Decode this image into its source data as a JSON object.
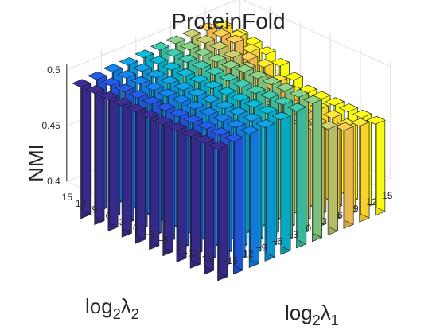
{
  "chart_data": {
    "type": "bar3",
    "title": "ProteinFold",
    "xlabel": "log2λ1",
    "ylabel": "log2λ2",
    "zlabel": "NMI",
    "x_ticks": [
      "-15",
      "-12",
      "-9",
      "-6",
      "-3",
      "0",
      "3",
      "6",
      "9",
      "12",
      "15"
    ],
    "y_ticks": [
      "-15",
      "-12",
      "-9",
      "-6",
      "-3",
      "0",
      "3",
      "6",
      "9",
      "12",
      "15"
    ],
    "z_ticks": [
      "0.4",
      "0.45",
      "0.5"
    ],
    "zlim": [
      0.4,
      0.5
    ],
    "grid": true,
    "colormap": "parula (color varies with log2λ1)",
    "values": [
      [
        0.488,
        0.488,
        0.488,
        0.488,
        0.488,
        0.488,
        0.488,
        0.488,
        0.488,
        0.488,
        0.488
      ],
      [
        0.489,
        0.489,
        0.489,
        0.489,
        0.489,
        0.489,
        0.489,
        0.489,
        0.489,
        0.489,
        0.489
      ],
      [
        0.49,
        0.49,
        0.49,
        0.49,
        0.49,
        0.49,
        0.49,
        0.49,
        0.49,
        0.49,
        0.49
      ],
      [
        0.49,
        0.49,
        0.49,
        0.49,
        0.49,
        0.49,
        0.49,
        0.49,
        0.49,
        0.49,
        0.49
      ],
      [
        0.491,
        0.491,
        0.491,
        0.491,
        0.491,
        0.491,
        0.491,
        0.491,
        0.491,
        0.491,
        0.491
      ],
      [
        0.493,
        0.493,
        0.493,
        0.492,
        0.492,
        0.492,
        0.492,
        0.492,
        0.492,
        0.492,
        0.492
      ],
      [
        0.494,
        0.494,
        0.494,
        0.494,
        0.494,
        0.494,
        0.492,
        0.492,
        0.492,
        0.492,
        0.492
      ],
      [
        0.465,
        0.458,
        0.457,
        0.458,
        0.463,
        0.47,
        0.485,
        0.49,
        0.492,
        0.492,
        0.492
      ],
      [
        0.458,
        0.452,
        0.452,
        0.455,
        0.458,
        0.462,
        0.47,
        0.482,
        0.492,
        0.492,
        0.492
      ],
      [
        0.456,
        0.45,
        0.452,
        0.454,
        0.455,
        0.458,
        0.462,
        0.47,
        0.478,
        0.485,
        0.488
      ],
      [
        0.452,
        0.452,
        0.452,
        0.452,
        0.452,
        0.452,
        0.458,
        0.465,
        0.47,
        0.473,
        0.475
      ]
    ]
  }
}
